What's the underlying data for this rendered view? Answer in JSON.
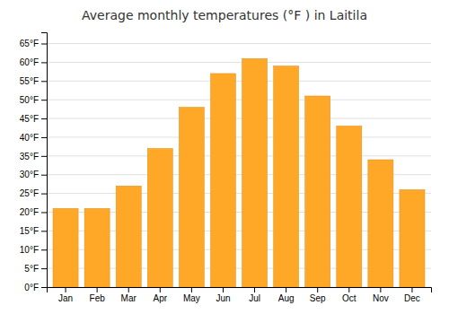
{
  "chart_data": {
    "type": "bar",
    "title": "Average monthly temperatures (°F ) in Laitila",
    "categories": [
      "Jan",
      "Feb",
      "Mar",
      "Apr",
      "May",
      "Jun",
      "Jul",
      "Aug",
      "Sep",
      "Oct",
      "Nov",
      "Dec"
    ],
    "values": [
      21,
      21,
      27,
      37,
      48,
      57,
      61,
      59,
      51,
      43,
      34,
      26
    ],
    "color": "#FFA726",
    "ylim": [
      0,
      68
    ],
    "yticks": [
      {
        "value": 0,
        "label": "0°F"
      },
      {
        "value": 5,
        "label": "5°F"
      },
      {
        "value": 10,
        "label": "10°F"
      },
      {
        "value": 15,
        "label": "15°F"
      },
      {
        "value": 20,
        "label": "20°F"
      },
      {
        "value": 25,
        "label": "25°F"
      },
      {
        "value": 30,
        "label": "30°F"
      },
      {
        "value": 35,
        "label": "35°F"
      },
      {
        "value": 40,
        "label": "40°F"
      },
      {
        "value": 45,
        "label": "45°F"
      },
      {
        "value": 50,
        "label": "50°F"
      },
      {
        "value": 55,
        "label": "55°F"
      },
      {
        "value": 60,
        "label": "60°F"
      },
      {
        "value": 65,
        "label": "65°F"
      }
    ],
    "grid": true
  }
}
